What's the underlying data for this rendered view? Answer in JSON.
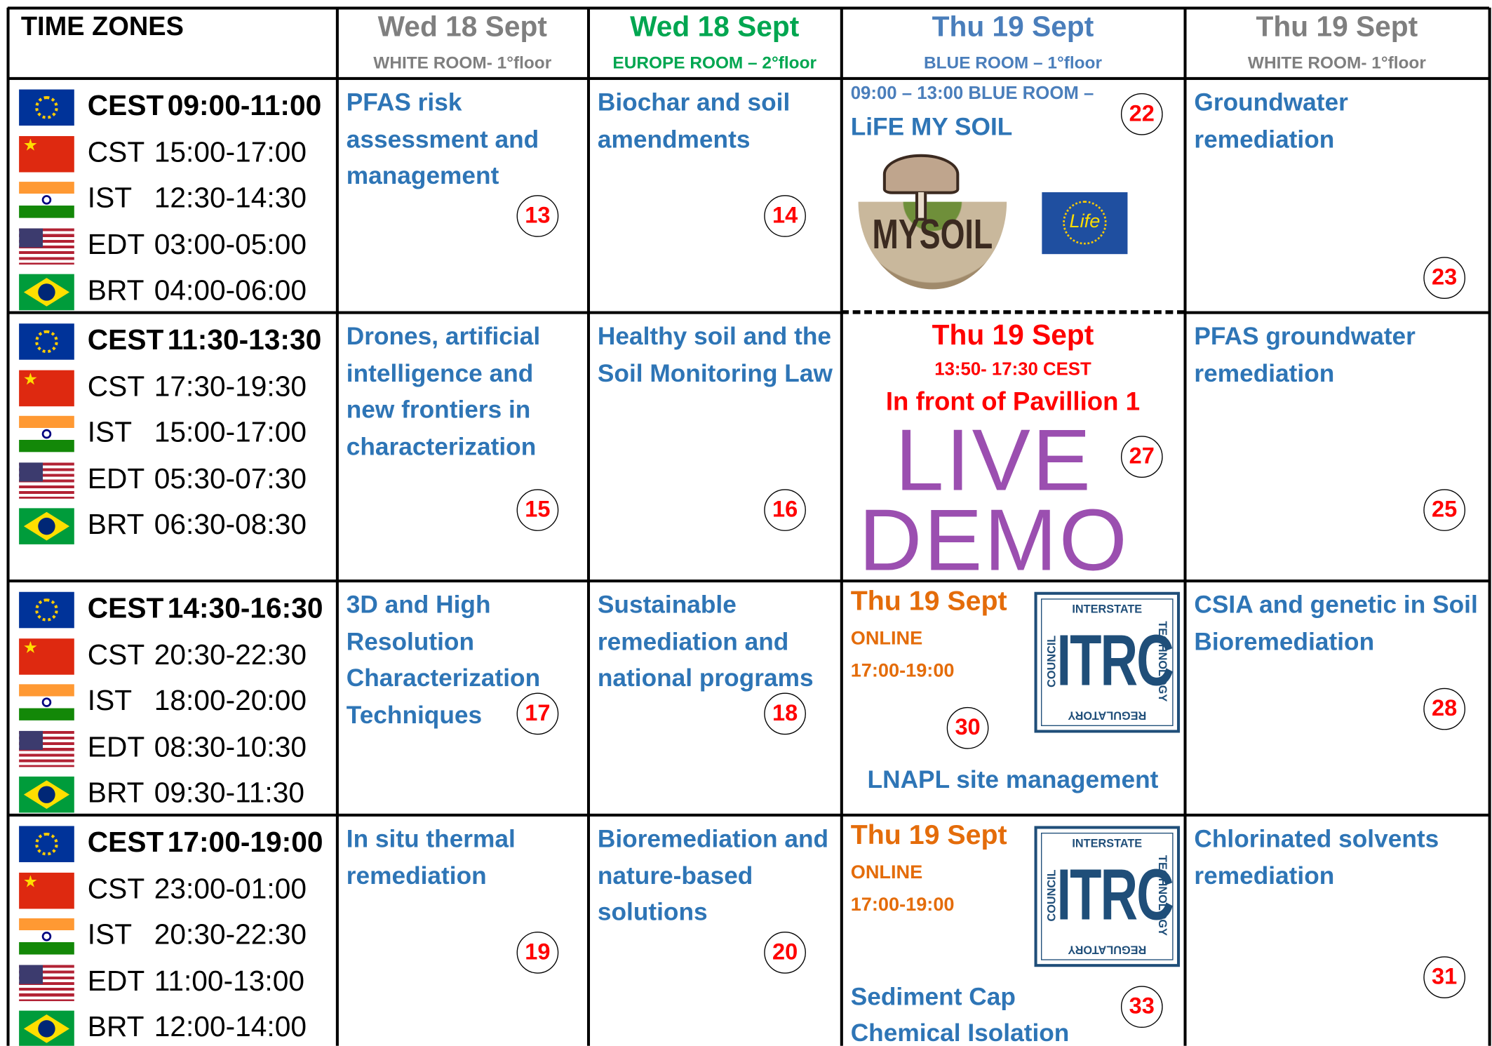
{
  "header": {
    "title": "TIME ZONES",
    "columns": [
      {
        "day": "Wed 18 Sept",
        "room": "WHITE ROOM- 1°floor"
      },
      {
        "day": "Wed 18 Sept",
        "room": "EUROPE ROOM – 2°floor"
      },
      {
        "day": "Thu 19 Sept",
        "room": "BLUE ROOM – 1°floor"
      },
      {
        "day": "Thu 19 Sept",
        "room": "WHITE ROOM- 1°floor"
      }
    ]
  },
  "rows": [
    {
      "zones": [
        {
          "code": "CEST",
          "time": "09:00-11:00"
        },
        {
          "code": "CST",
          "time": "15:00-17:00"
        },
        {
          "code": "IST",
          "time": "12:30-14:30"
        },
        {
          "code": "EDT",
          "time": "03:00-05:00"
        },
        {
          "code": "BRT",
          "time": "04:00-06:00"
        }
      ],
      "sessions": [
        {
          "title": "PFAS risk assessment and management",
          "number": 13
        },
        {
          "title": "Biochar and soil amendments",
          "number": 14
        },
        {
          "note": "09:00 – 13:00 BLUE ROOM –",
          "title": "LiFE MY SOIL",
          "logo": "MYSOIL",
          "badge": "Life",
          "number": 22
        },
        {
          "title": "Groundwater remediation",
          "number": 23
        }
      ]
    },
    {
      "zones": [
        {
          "code": "CEST",
          "time": "11:30-13:30"
        },
        {
          "code": "CST",
          "time": "17:30-19:30"
        },
        {
          "code": "IST",
          "time": "15:00-17:00"
        },
        {
          "code": "EDT",
          "time": "05:30-07:30"
        },
        {
          "code": "BRT",
          "time": "06:30-08:30"
        }
      ],
      "sessions": [
        {
          "title": "Drones, artificial intelligence and new frontiers in characterization",
          "number": 15
        },
        {
          "title": "Healthy soil and the Soil Monitoring Law",
          "number": 16
        },
        {
          "day": "Thu 19 Sept",
          "time": "13:50- 17:30 CEST",
          "place": "In front of Pavillion 1",
          "logo": [
            "LIVE",
            "DEMO"
          ],
          "number": 27
        },
        {
          "title": "PFAS groundwater remediation",
          "number": 25
        }
      ]
    },
    {
      "zones": [
        {
          "code": "CEST",
          "time": "14:30-16:30"
        },
        {
          "code": "CST",
          "time": "20:30-22:30"
        },
        {
          "code": "IST",
          "time": "18:00-20:00"
        },
        {
          "code": "EDT",
          "time": "08:30-10:30"
        },
        {
          "code": "BRT",
          "time": "09:30-11:30"
        }
      ],
      "sessions": [
        {
          "title": "3D and High Resolution Characterization Techniques",
          "number": 17
        },
        {
          "title": "Sustainable remediation and national programs",
          "number": 18
        },
        {
          "day": "Thu 19 Sept",
          "mode": "ONLINE",
          "time": "17:00-19:00",
          "logo": {
            "name": "ITRC",
            "top": "INTERSTATE",
            "right": "TECHNOLOGY",
            "bottom": "REGULATORY",
            "left": "COUNCIL"
          },
          "number": 30,
          "title": "LNAPL site management"
        },
        {
          "title": "CSIA and genetic in Soil Bioremediation",
          "number": 28
        }
      ]
    },
    {
      "zones": [
        {
          "code": "CEST",
          "time": "17:00-19:00"
        },
        {
          "code": "CST",
          "time": "23:00-01:00"
        },
        {
          "code": "IST",
          "time": "20:30-22:30"
        },
        {
          "code": "EDT",
          "time": "11:00-13:00"
        },
        {
          "code": "BRT",
          "time": "12:00-14:00"
        }
      ],
      "sessions": [
        {
          "title": "In situ thermal remediation",
          "number": 19
        },
        {
          "title": "Bioremediation and nature-based solutions",
          "number": 20
        },
        {
          "day": "Thu 19 Sept",
          "mode": "ONLINE",
          "time": "17:00-19:00",
          "logo": {
            "name": "ITRC",
            "top": "INTERSTATE",
            "right": "TECHNOLOGY",
            "bottom": "REGULATORY",
            "left": "COUNCIL"
          },
          "number": 33,
          "title": "Sediment Cap Chemical Isolation"
        },
        {
          "title": "Chlorinated solvents remediation",
          "number": 31
        }
      ]
    }
  ]
}
